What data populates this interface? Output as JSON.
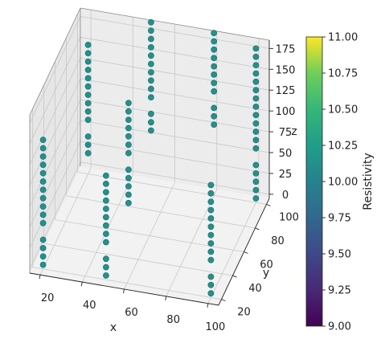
{
  "chart_data": {
    "type": "scatter3d",
    "title": "",
    "xlabel": "x",
    "ylabel": "y",
    "zlabel": "z",
    "xlim": [
      15,
      105
    ],
    "ylim": [
      15,
      105
    ],
    "zlim": [
      -5,
      185
    ],
    "xticks": [
      20,
      40,
      60,
      80,
      100
    ],
    "yticks": [
      20,
      40,
      60,
      80,
      100
    ],
    "zticks": [
      0,
      25,
      50,
      75,
      100,
      125,
      150,
      175
    ],
    "grid": true,
    "point_color": "#21918c",
    "colorbar": {
      "label": "Resistivity",
      "colormap": "viridis",
      "vmin": 9.0,
      "vmax": 11.0,
      "ticks": [
        "9.00",
        "9.25",
        "9.50",
        "9.75",
        "10.00",
        "10.25",
        "10.50",
        "10.75",
        "11.00"
      ]
    },
    "wells": [
      {
        "x": 20,
        "y": 20,
        "z": [
          0,
          10,
          20,
          30,
          50,
          60,
          70,
          80,
          90,
          100,
          110,
          120,
          130,
          140,
          150
        ]
      },
      {
        "x": 20,
        "y": 100,
        "z": [
          20,
          30,
          40,
          60,
          70,
          80,
          90,
          100,
          110,
          120,
          130,
          140,
          150
        ]
      },
      {
        "x": 50,
        "y": 20,
        "z": [
          0,
          10,
          20,
          40,
          50,
          60,
          70,
          80,
          90,
          100,
          110,
          120
        ]
      },
      {
        "x": 50,
        "y": 100,
        "z": [
          60,
          70,
          80,
          100,
          110,
          120,
          130,
          140,
          150,
          160,
          170,
          180,
          190
        ]
      },
      {
        "x": 100,
        "y": 20,
        "z": [
          0,
          10,
          20,
          40,
          50,
          60,
          70,
          80,
          90,
          100,
          110,
          120,
          130
        ]
      },
      {
        "x": 100,
        "y": 100,
        "z": [
          0,
          10,
          20,
          30,
          40,
          60,
          70,
          80,
          90,
          100,
          110,
          120,
          130,
          140,
          150,
          160,
          170,
          180
        ]
      },
      {
        "x": 50,
        "y": 60,
        "z": [
          30,
          40,
          50,
          60,
          70,
          90,
          100,
          110,
          120,
          130,
          140,
          150
        ]
      },
      {
        "x": 80,
        "y": 100,
        "z": [
          80,
          90,
          100,
          120,
          130,
          140,
          150,
          160,
          170,
          180,
          190
        ]
      }
    ]
  }
}
